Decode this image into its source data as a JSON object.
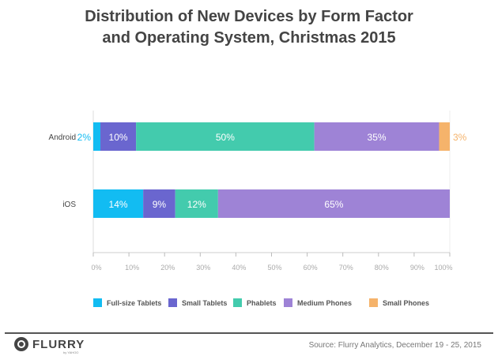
{
  "chart_data": {
    "type": "bar",
    "orientation": "horizontal",
    "stacked": true,
    "title": "Distribution of New Devices by Form Factor and Operating System, Christmas 2015",
    "title_lines": [
      "Distribution of New Devices by Form Factor",
      "and Operating System, Christmas 2015"
    ],
    "categories": [
      "Android",
      "iOS"
    ],
    "series": [
      {
        "name": "Full-size Tablets",
        "color": "#12BCF2",
        "values": [
          2,
          14
        ],
        "labels": [
          "2%",
          "14%"
        ]
      },
      {
        "name": "Small Tablets",
        "color": "#6A66CF",
        "values": [
          10,
          9
        ],
        "labels": [
          "10%",
          "9%"
        ]
      },
      {
        "name": "Phablets",
        "color": "#43CBAD",
        "values": [
          50,
          12
        ],
        "labels": [
          "50%",
          "12%"
        ]
      },
      {
        "name": "Medium Phones",
        "color": "#9E83D6",
        "values": [
          35,
          65
        ],
        "labels": [
          "35%",
          "65%"
        ]
      },
      {
        "name": "Small Phones",
        "color": "#F5B36B",
        "values": [
          3,
          0
        ],
        "labels": [
          "3%",
          ""
        ]
      }
    ],
    "xlabel": "",
    "ylabel": "",
    "xlim": [
      0,
      100
    ],
    "x_ticks": [
      "0%",
      "10%",
      "20%",
      "30%",
      "40%",
      "50%",
      "60%",
      "70%",
      "80%",
      "90%",
      "100%"
    ],
    "grid": false,
    "legend": "bottom"
  },
  "footer": {
    "logo_text": "FLURRY",
    "logo_sub": "by YAHOO",
    "source": "Source: Flurry Analytics, December 19 - 25, 2015"
  }
}
